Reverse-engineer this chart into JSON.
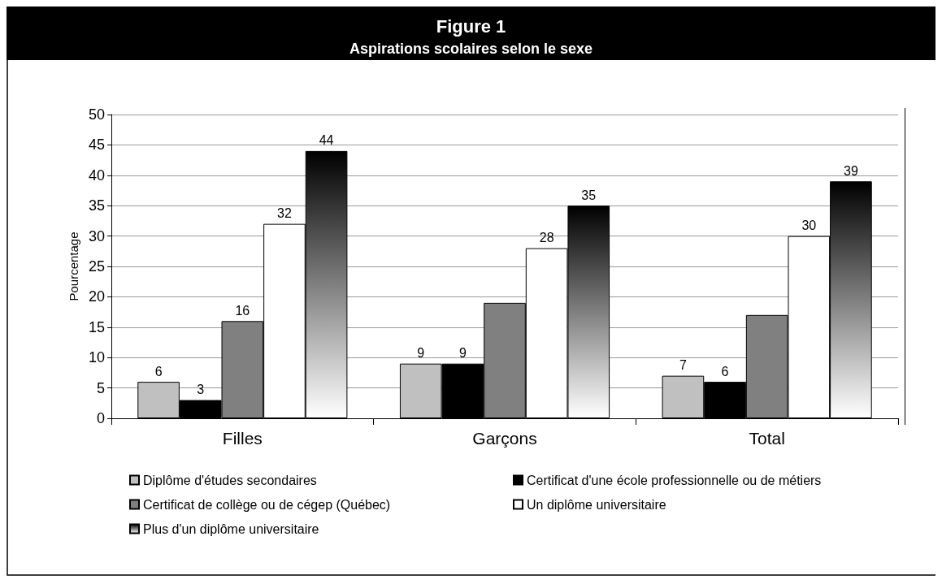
{
  "chart_data": {
    "type": "bar",
    "title": "Figure 1",
    "subtitle": "Aspirations scolaires selon le sexe",
    "ylabel": "Pourcentage",
    "categories": [
      "Filles",
      "Garçons",
      "Total"
    ],
    "series": [
      {
        "name": "Diplôme d'études secondaires",
        "color": "#c0c0c0",
        "values": [
          6,
          9,
          7
        ],
        "value_labels": [
          "6",
          "9",
          "7"
        ]
      },
      {
        "name": "Certificat d'une école professionnelle ou de métiers",
        "color": "#000000",
        "values": [
          3,
          9,
          6
        ],
        "value_labels": [
          "3",
          "9",
          "6"
        ]
      },
      {
        "name": "Certificat de collège ou de cégep (Québec)",
        "color": "#808080",
        "values": [
          16,
          19,
          17
        ],
        "value_labels": [
          "16",
          null,
          null
        ]
      },
      {
        "name": "Un diplôme universitaire",
        "color": "#ffffff",
        "values": [
          32,
          28,
          30
        ],
        "value_labels": [
          "32",
          "28",
          "30"
        ]
      },
      {
        "name": "Plus d'un diplôme universitaire",
        "color": "#000000",
        "values": [
          44,
          35,
          39
        ],
        "value_labels": [
          "44",
          "35",
          "39"
        ]
      }
    ],
    "ylim": [
      0,
      50
    ],
    "yticks": [
      0,
      5,
      10,
      15,
      20,
      25,
      30,
      35,
      40,
      45,
      50
    ],
    "grid": "y",
    "legend": "bottom"
  }
}
